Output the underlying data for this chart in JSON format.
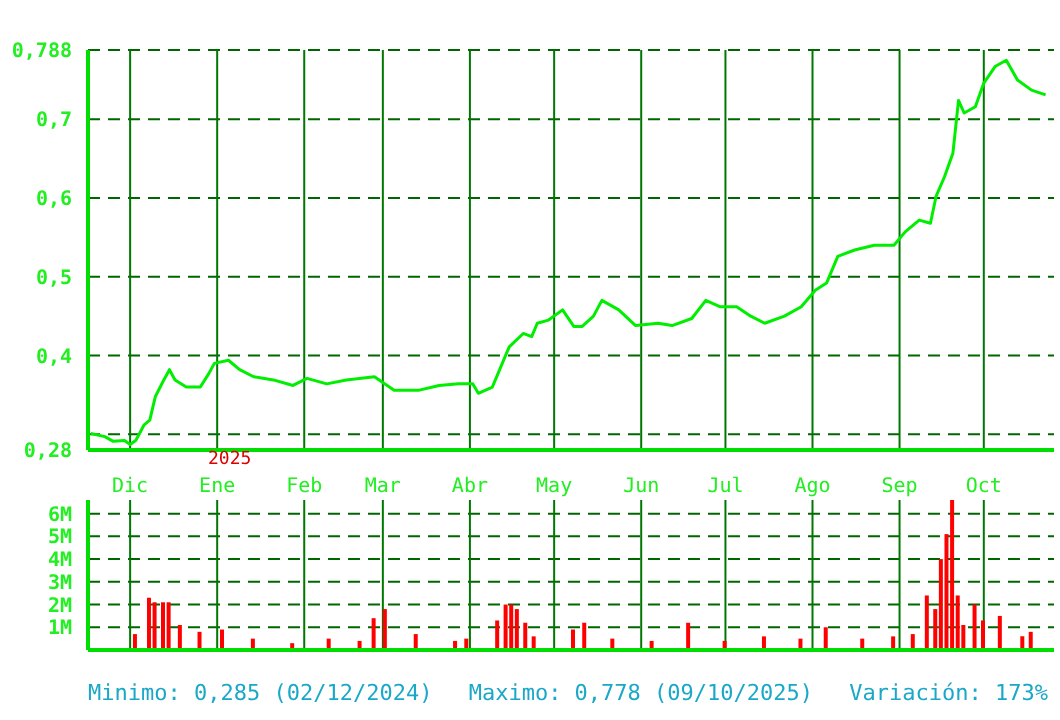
{
  "chart_data": [
    {
      "type": "line",
      "xlim": [
        "2024-11-16",
        "2025-10-26"
      ],
      "xticks": [
        {
          "value": "2024-12-01",
          "label": "Dic"
        },
        {
          "value": "2025-01-01",
          "label": "Ene"
        },
        {
          "value": "2025-02-01",
          "label": "Feb"
        },
        {
          "value": "2025-03-01",
          "label": "Mar"
        },
        {
          "value": "2025-04-01",
          "label": "Abr"
        },
        {
          "value": "2025-05-01",
          "label": "May"
        },
        {
          "value": "2025-06-01",
          "label": "Jun"
        },
        {
          "value": "2025-07-01",
          "label": "Jul"
        },
        {
          "value": "2025-08-01",
          "label": "Ago"
        },
        {
          "value": "2025-09-01",
          "label": "Sep"
        },
        {
          "value": "2025-10-01",
          "label": "Oct"
        }
      ],
      "ylim": [
        0.28,
        0.788
      ],
      "yticks": [
        {
          "value": 0.28,
          "label": "0,28"
        },
        {
          "value": 0.3,
          "label": null
        },
        {
          "value": 0.4,
          "label": "0,4"
        },
        {
          "value": 0.5,
          "label": "0,5"
        },
        {
          "value": 0.6,
          "label": "0,6"
        },
        {
          "value": 0.7,
          "label": "0,7"
        },
        {
          "value": 0.788,
          "label": "0,788"
        }
      ],
      "grid": true,
      "tick_labels": "xy",
      "marker": "none",
      "x": [
        "2024-11-17",
        "2024-11-22",
        "2024-11-25",
        "2024-11-29",
        "2024-12-01",
        "2024-12-03",
        "2024-12-06",
        "2024-12-08",
        "2024-12-10",
        "2024-12-13",
        "2024-12-15",
        "2024-12-17",
        "2024-12-21",
        "2024-12-26",
        "2024-12-29",
        "2024-12-31",
        "2025-01-05",
        "2025-01-09",
        "2025-01-14",
        "2025-01-21",
        "2025-01-28",
        "2025-02-02",
        "2025-02-09",
        "2025-02-16",
        "2025-02-26",
        "2025-03-05",
        "2025-03-14",
        "2025-03-21",
        "2025-03-28",
        "2025-04-02",
        "2025-04-04",
        "2025-04-09",
        "2025-04-11",
        "2025-04-15",
        "2025-04-20",
        "2025-04-23",
        "2025-04-25",
        "2025-04-29",
        "2025-05-04",
        "2025-05-08",
        "2025-05-11",
        "2025-05-15",
        "2025-05-18",
        "2025-05-24",
        "2025-05-30",
        "2025-06-07",
        "2025-06-12",
        "2025-06-19",
        "2025-06-24",
        "2025-06-29",
        "2025-07-05",
        "2025-07-10",
        "2025-07-15",
        "2025-07-22",
        "2025-07-28",
        "2025-08-02",
        "2025-08-06",
        "2025-08-10",
        "2025-08-16",
        "2025-08-23",
        "2025-08-30",
        "2025-09-03",
        "2025-09-08",
        "2025-09-12",
        "2025-09-14",
        "2025-09-17",
        "2025-09-20",
        "2025-09-22",
        "2025-09-24",
        "2025-09-28",
        "2025-10-01",
        "2025-10-05",
        "2025-10-09",
        "2025-10-13",
        "2025-10-18",
        "2025-10-23"
      ],
      "series": [
        {
          "color": "#00ee00",
          "values": [
            0.301,
            0.297,
            0.291,
            0.292,
            0.287,
            0.292,
            0.312,
            0.318,
            0.348,
            0.369,
            0.382,
            0.369,
            0.36,
            0.36,
            0.377,
            0.39,
            0.394,
            0.382,
            0.373,
            0.369,
            0.362,
            0.371,
            0.364,
            0.369,
            0.373,
            0.356,
            0.356,
            0.362,
            0.364,
            0.364,
            0.352,
            0.36,
            0.377,
            0.411,
            0.428,
            0.424,
            0.441,
            0.445,
            0.458,
            0.437,
            0.437,
            0.45,
            0.47,
            0.458,
            0.438,
            0.441,
            0.438,
            0.447,
            0.47,
            0.462,
            0.462,
            0.45,
            0.441,
            0.45,
            0.462,
            0.483,
            0.492,
            0.526,
            0.534,
            0.54,
            0.54,
            0.557,
            0.572,
            0.568,
            0.602,
            0.627,
            0.657,
            0.724,
            0.708,
            0.716,
            0.746,
            0.767,
            0.775,
            0.75,
            0.737,
            0.731
          ]
        }
      ],
      "annotations": [
        "2025"
      ]
    },
    {
      "type": "bar",
      "xlim": [
        "2024-11-16",
        "2025-10-26"
      ],
      "xticks": [
        {
          "value": "2024-12-01",
          "label": null
        },
        {
          "value": "2025-01-01",
          "label": null
        },
        {
          "value": "2025-02-01",
          "label": null
        },
        {
          "value": "2025-03-01",
          "label": null
        },
        {
          "value": "2025-04-01",
          "label": null
        },
        {
          "value": "2025-05-01",
          "label": null
        },
        {
          "value": "2025-06-01",
          "label": null
        },
        {
          "value": "2025-07-01",
          "label": null
        },
        {
          "value": "2025-08-01",
          "label": null
        },
        {
          "value": "2025-09-01",
          "label": null
        },
        {
          "value": "2025-10-01",
          "label": null
        }
      ],
      "ylim": [
        0,
        6.6
      ],
      "yticks": [
        {
          "value": 1,
          "label": "1M"
        },
        {
          "value": 2,
          "label": "2M"
        },
        {
          "value": 3,
          "label": "3M"
        },
        {
          "value": 4,
          "label": "4M"
        },
        {
          "value": 5,
          "label": "5M"
        },
        {
          "value": 6,
          "label": "6M"
        }
      ],
      "grid": true,
      "tick_labels": "y",
      "x": [
        "2024-12-03",
        "2024-12-08",
        "2024-12-10",
        "2024-12-13",
        "2024-12-15",
        "2024-12-19",
        "2024-12-26",
        "2025-01-03",
        "2025-01-14",
        "2025-01-28",
        "2025-02-10",
        "2025-02-21",
        "2025-02-26",
        "2025-03-02",
        "2025-03-13",
        "2025-03-27",
        "2025-03-31",
        "2025-04-11",
        "2025-04-14",
        "2025-04-16",
        "2025-04-18",
        "2025-04-21",
        "2025-04-24",
        "2025-05-08",
        "2025-05-12",
        "2025-05-22",
        "2025-06-05",
        "2025-06-18",
        "2025-07-01",
        "2025-07-15",
        "2025-07-28",
        "2025-08-06",
        "2025-08-19",
        "2025-08-30",
        "2025-09-06",
        "2025-09-11",
        "2025-09-14",
        "2025-09-16",
        "2025-09-18",
        "2025-09-20",
        "2025-09-22",
        "2025-09-24",
        "2025-09-28",
        "2025-10-01",
        "2025-10-07",
        "2025-10-15",
        "2025-10-18"
      ],
      "series": [
        {
          "color": "#ff0000",
          "values": [
            0.7,
            2.3,
            2.1,
            2.1,
            2.1,
            1.1,
            0.8,
            0.9,
            0.5,
            0.3,
            0.5,
            0.4,
            1.4,
            1.8,
            0.7,
            0.4,
            0.5,
            1.3,
            2.0,
            2.0,
            1.8,
            1.2,
            0.6,
            0.9,
            1.2,
            0.5,
            0.4,
            1.2,
            0.4,
            0.6,
            0.5,
            1.0,
            0.5,
            0.6,
            0.7,
            2.4,
            1.8,
            4.0,
            5.1,
            6.6,
            2.4,
            1.1,
            2.0,
            1.3,
            1.5,
            0.6,
            0.8
          ]
        }
      ],
      "annotations": [
        "Minimo: 0,285 (02/12/2024)",
        "Maximo: 0,778 (09/10/2025)",
        "Variación: 173%"
      ]
    }
  ]
}
